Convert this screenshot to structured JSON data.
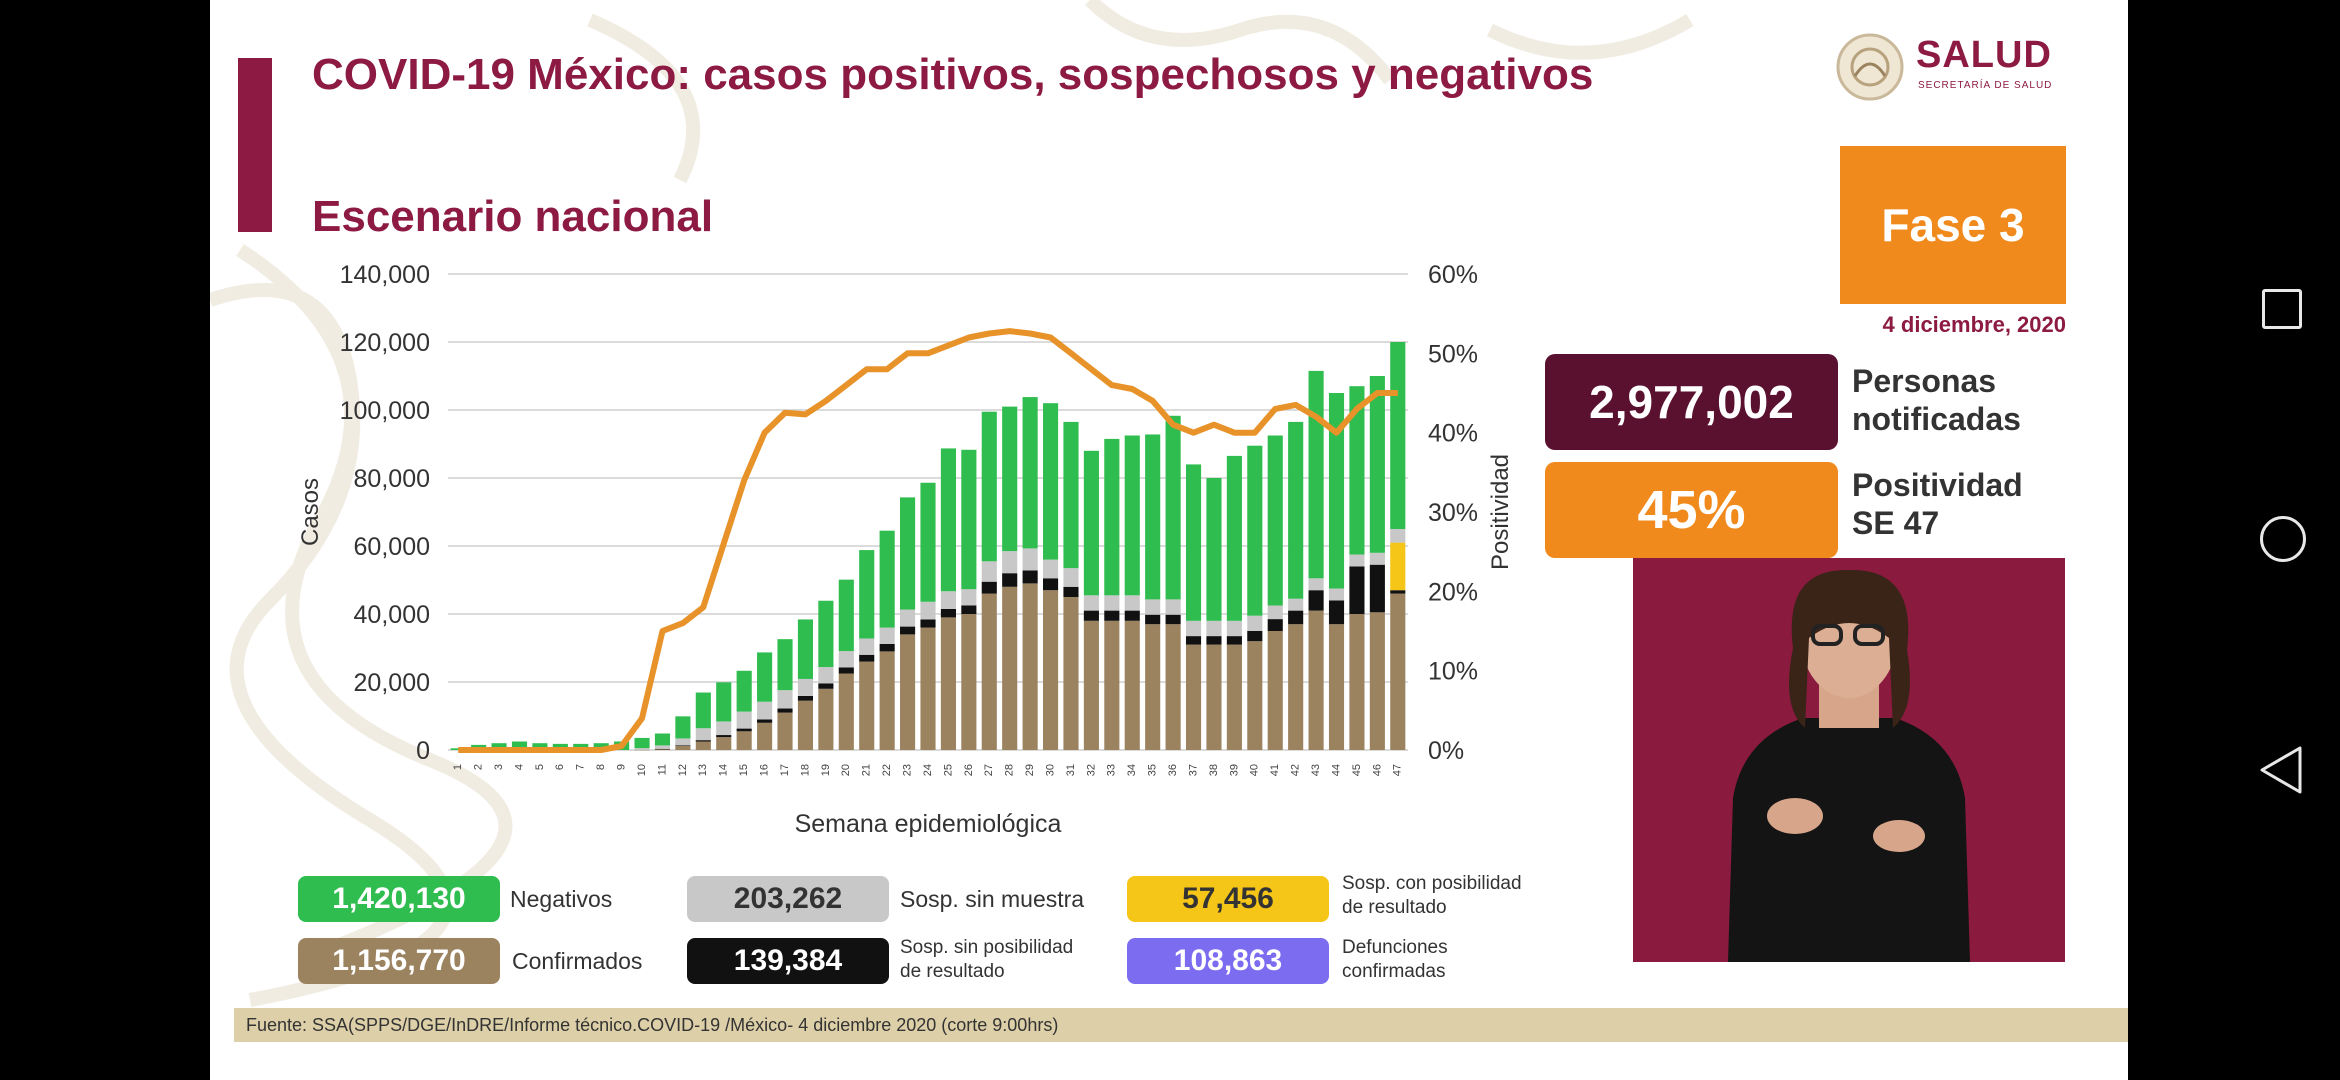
{
  "slide": {
    "title": "COVID-19 México: casos positivos, sospechosos y negativos",
    "subtitle": "Escenario nacional",
    "logo_text": "SALUD",
    "logo_subtext": "SECRETARÍA DE SALUD",
    "phase": "Fase 3",
    "date": "4 diciembre, 2020",
    "footer": "Fuente: SSA(SPPS/DGE/InDRE/Informe técnico.COVID-19 /México- 4 diciembre 2020 (corte 9:00hrs)"
  },
  "stats": {
    "persons_value": "2,977,002",
    "persons_label_line1": "Personas",
    "persons_label_line2": "notificadas",
    "positivity_value": "45%",
    "positivity_label_line1": "Positividad",
    "positivity_label_line2": "SE 47"
  },
  "legend": {
    "negativos_value": "1,420,130",
    "negativos_label": "Negativos",
    "confirmados_value": "1,156,770",
    "confirmados_label": "Confirmados",
    "sin_muestra_value": "203,262",
    "sin_muestra_label": "Sosp. sin muestra",
    "sin_posibilidad_value": "139,384",
    "sin_posibilidad_label_1": "Sosp. sin posibilidad",
    "sin_posibilidad_label_2": "de resultado",
    "con_posibilidad_value": "57,456",
    "con_posibilidad_label_1": "Sosp. con posibilidad",
    "con_posibilidad_label_2": "de resultado",
    "defunciones_value": "108,863",
    "defunciones_label_1": "Defunciones",
    "defunciones_label_2": "confirmadas"
  },
  "colors": {
    "brand": "#8c1a42",
    "orange": "#f18a1c",
    "negativos": "#2ebd4e",
    "confirmados": "#9c8360",
    "sin_muestra": "#c8c8c8",
    "sin_posibilidad": "#111111",
    "con_posibilidad": "#f5c518",
    "defunciones": "#7b6cf0",
    "positividad_line": "#e8922a"
  },
  "chart_data": {
    "type": "bar",
    "stacked": true,
    "xlabel": "Semana epidemiológica",
    "ylabel": "Casos",
    "y2label": "Positividad",
    "ylim": [
      0,
      140000
    ],
    "y2lim": [
      0,
      60
    ],
    "yticks": [
      "0",
      "20,000",
      "40,000",
      "60,000",
      "80,000",
      "100,000",
      "120,000",
      "140,000"
    ],
    "y2ticks": [
      "0%",
      "10%",
      "20%",
      "30%",
      "40%",
      "50%",
      "60%"
    ],
    "grid": true,
    "categories": [
      "1",
      "2",
      "3",
      "4",
      "5",
      "6",
      "7",
      "8",
      "9",
      "10",
      "11",
      "12",
      "13",
      "14",
      "15",
      "16",
      "17",
      "18",
      "19",
      "20",
      "21",
      "22",
      "23",
      "24",
      "25",
      "26",
      "27",
      "28",
      "29",
      "30",
      "31",
      "32",
      "33",
      "34",
      "35",
      "36",
      "37",
      "38",
      "39",
      "40",
      "41",
      "42",
      "43",
      "44",
      "45",
      "46",
      "47"
    ],
    "series": [
      {
        "name": "Confirmados",
        "color": "#9c8360",
        "values": [
          0,
          0,
          0,
          0,
          0,
          0,
          0,
          0,
          0,
          50,
          300,
          1200,
          2500,
          3800,
          5500,
          8000,
          11000,
          14500,
          18000,
          22500,
          26000,
          29000,
          34000,
          36000,
          39000,
          40000,
          46000,
          48000,
          49000,
          47000,
          45000,
          38000,
          38000,
          38000,
          37000,
          37000,
          31000,
          31000,
          31000,
          32000,
          35000,
          37000,
          41000,
          37000,
          40000,
          40500,
          46000
        ]
      },
      {
        "name": "Sosp. sin posibilidad de resultado",
        "color": "#111111",
        "values": [
          0,
          0,
          0,
          0,
          0,
          0,
          0,
          0,
          0,
          0,
          50,
          200,
          400,
          600,
          800,
          1000,
          1200,
          1400,
          1600,
          1800,
          2000,
          2200,
          2300,
          2400,
          2500,
          2500,
          3500,
          4000,
          3800,
          3500,
          3000,
          3000,
          3000,
          3000,
          2800,
          2800,
          2500,
          2500,
          2500,
          3000,
          3500,
          4000,
          6000,
          7000,
          14000,
          14000,
          1000
        ]
      },
      {
        "name": "Sosp. con posibilidad de resultado",
        "color": "#f5c518",
        "values": [
          0,
          0,
          0,
          0,
          0,
          0,
          0,
          0,
          0,
          0,
          0,
          0,
          0,
          0,
          0,
          0,
          0,
          0,
          0,
          0,
          0,
          0,
          0,
          0,
          0,
          0,
          0,
          0,
          0,
          0,
          0,
          0,
          0,
          0,
          0,
          0,
          0,
          0,
          0,
          0,
          0,
          0,
          0,
          0,
          0,
          0,
          14000
        ]
      },
      {
        "name": "Sosp. sin muestra",
        "color": "#c8c8c8",
        "values": [
          0,
          0,
          0,
          0,
          0,
          0,
          0,
          0,
          0,
          500,
          1000,
          2000,
          3500,
          4000,
          5000,
          5200,
          5400,
          5000,
          4800,
          4800,
          4800,
          4800,
          5000,
          5200,
          5200,
          4800,
          6000,
          6500,
          6500,
          5500,
          5500,
          4500,
          4500,
          4500,
          4500,
          4500,
          4500,
          4500,
          4500,
          4500,
          4000,
          3500,
          3500,
          3500,
          3500,
          3500,
          4000
        ]
      },
      {
        "name": "Negativos",
        "color": "#2ebd4e",
        "values": [
          500,
          1500,
          2000,
          2500,
          2000,
          1800,
          1800,
          2000,
          2500,
          3000,
          3500,
          6500,
          10500,
          11500,
          12000,
          14500,
          15000,
          17500,
          19500,
          21000,
          26000,
          28500,
          33000,
          35000,
          42000,
          41000,
          44000,
          42500,
          44500,
          46000,
          43000,
          42500,
          46000,
          47000,
          48500,
          54000,
          46000,
          42000,
          48500,
          50000,
          50000,
          52000,
          61000,
          57500,
          49500,
          52000,
          55000
        ]
      }
    ],
    "line": {
      "name": "Positividad",
      "axis": "y2",
      "color": "#e8922a",
      "values": [
        0,
        0,
        0,
        0,
        0,
        0,
        0,
        0,
        0.5,
        4,
        15,
        16,
        18,
        26,
        34,
        40,
        42.5,
        42.3,
        44,
        46,
        48,
        48,
        50,
        50,
        51,
        52,
        52.5,
        52.8,
        52.5,
        52,
        50,
        48,
        46,
        45.5,
        44,
        41,
        40,
        41,
        40,
        40,
        43,
        43.5,
        42,
        40,
        43,
        45,
        45
      ]
    }
  }
}
